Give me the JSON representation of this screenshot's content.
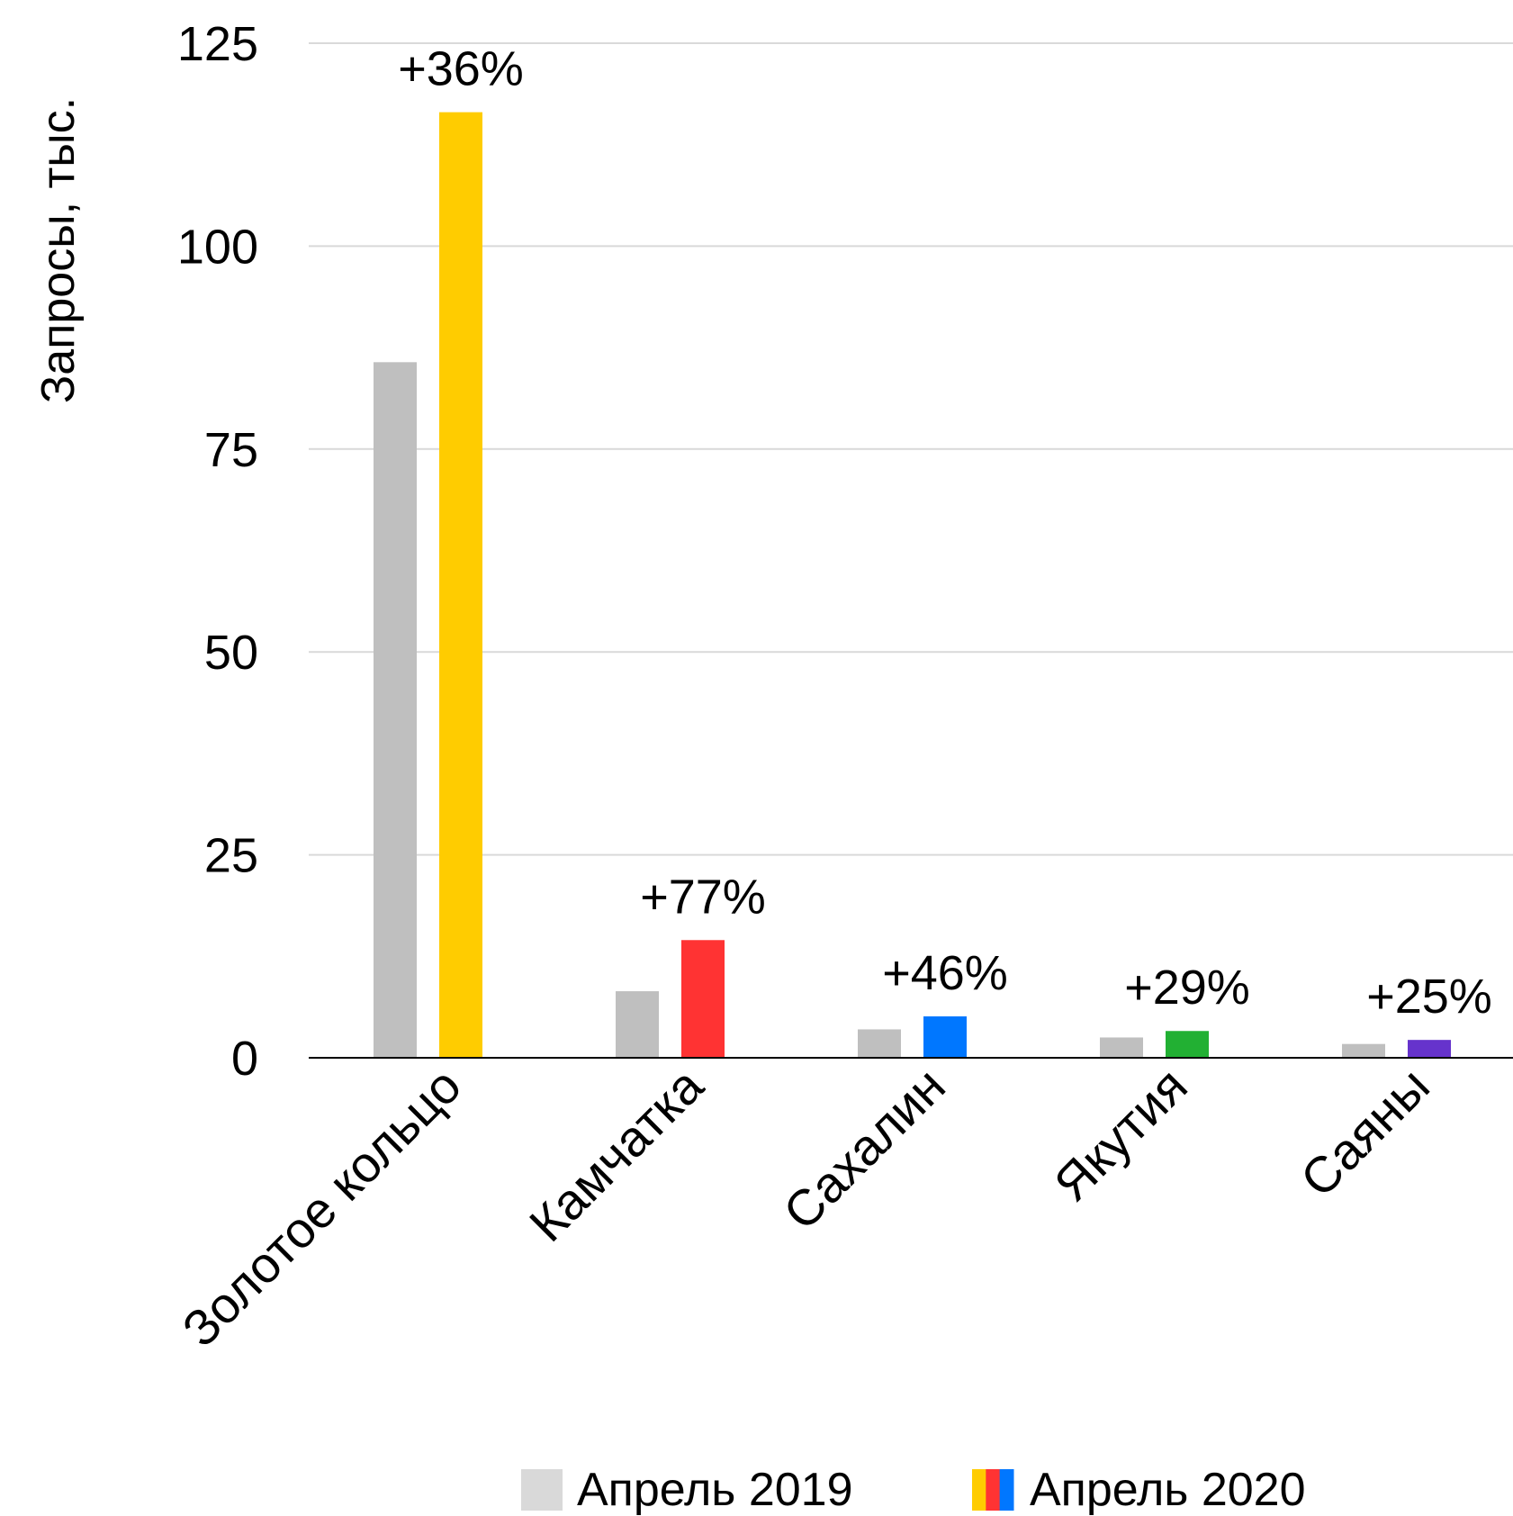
{
  "chart_data": {
    "type": "bar",
    "ylabel": "Запросы, тыс.",
    "xlabel": "",
    "ylim": [
      0,
      125
    ],
    "yticks": [
      0,
      25,
      50,
      75,
      100,
      125
    ],
    "grid": true,
    "legend_position": "bottom",
    "categories": [
      "Золотое кольцо",
      "Камчатка",
      "Сахалин",
      "Якутия",
      "Саяны"
    ],
    "series": [
      {
        "name": "Апрель 2019",
        "color": "#bfbfbf",
        "legend_color": "#d9d9d9",
        "values": [
          85.7,
          8.2,
          3.5,
          2.5,
          1.7
        ]
      },
      {
        "name": "Апрель 2020",
        "colors": [
          "#ffcc00",
          "#ff3333",
          "#0077ff",
          "#22b033",
          "#6633cc"
        ],
        "legend_colors": [
          "#ffcc00",
          "#ff3333",
          "#0077ff"
        ],
        "values": [
          116.5,
          14.5,
          5.1,
          3.3,
          2.2
        ]
      }
    ],
    "annotations": [
      "+36%",
      "+77%",
      "+46%",
      "+29%",
      "+25%"
    ]
  }
}
